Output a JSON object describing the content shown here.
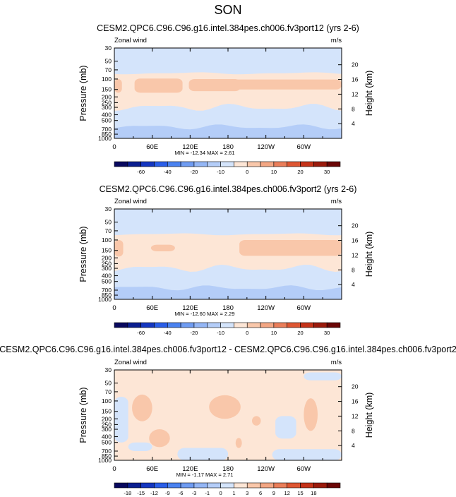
{
  "figure_title": "SON",
  "chart_data": [
    {
      "type": "heatmap",
      "title": "CESM2.QPC6.C96.C96.g16.intel.384pes.ch006.fv3port12 (yrs 2-6)",
      "left_label": "Zonal wind",
      "right_label": "m/s",
      "ylabel": "Pressure (mb)",
      "ylabel_right": "Height (km)",
      "x_ticks": [
        "0",
        "60E",
        "120E",
        "180",
        "120W",
        "60W"
      ],
      "x_tick_values": [
        0,
        60,
        120,
        180,
        240,
        300
      ],
      "xlim": [
        0,
        360
      ],
      "y_ticks": [
        "30",
        "50",
        "70",
        "100",
        "150",
        "200",
        "250",
        "300",
        "400",
        "500",
        "700",
        "850",
        "1000"
      ],
      "y_tick_values": [
        30,
        50,
        70,
        100,
        150,
        200,
        250,
        300,
        400,
        500,
        700,
        850,
        1000
      ],
      "ylim": [
        1000,
        30
      ],
      "y_scale": "log",
      "height_ticks": [
        "20",
        "16",
        "12",
        "8",
        "4"
      ],
      "stats": "MIN = -12.34  MAX =  2.61",
      "min": -12.34,
      "max": 2.61,
      "colorbar_levels": [
        -70,
        -60,
        -50,
        -40,
        -30,
        -20,
        -15,
        -10,
        -5,
        0,
        5,
        10,
        15,
        20,
        25,
        30,
        35
      ],
      "colorbar_labels": [
        "-60",
        "-40",
        "-20",
        "-10",
        "0",
        "10",
        "20",
        "30"
      ],
      "colorbar_colors": [
        "#08085e",
        "#0a1e8f",
        "#1436c0",
        "#2a5ee8",
        "#4a82f0",
        "#6f9cf2",
        "#94b6f5",
        "#b4cdf8",
        "#d4e4fb",
        "#fde6d6",
        "#f9c7aa",
        "#f3a683",
        "#ea7e5a",
        "#de5632",
        "#c43218",
        "#9a1a0c",
        "#6b0606"
      ],
      "fields": {
        "cold_band_upper": {
          "level": "-10 to -5",
          "pressure_span": [
            30,
            80
          ]
        },
        "warm_band": {
          "level": "0 to 5",
          "pressure_span": [
            80,
            300
          ]
        },
        "jet_cores": {
          "level": "5 to 10",
          "pressure_span": [
            100,
            180
          ]
        },
        "cold_band_lower": {
          "level": "-5 to 0",
          "pressure_span": [
            300,
            620
          ]
        },
        "surface": {
          "level": "-10 to -5",
          "pressure_span": [
            620,
            1000
          ]
        }
      }
    },
    {
      "type": "heatmap",
      "title": "CESM2.QPC6.C96.C96.g16.intel.384pes.ch006.fv3port2 (yrs 2-6)",
      "left_label": "Zonal wind",
      "right_label": "m/s",
      "ylabel": "Pressure (mb)",
      "ylabel_right": "Height (km)",
      "x_ticks": [
        "0",
        "60E",
        "120E",
        "180",
        "120W",
        "60W"
      ],
      "x_tick_values": [
        0,
        60,
        120,
        180,
        240,
        300
      ],
      "xlim": [
        0,
        360
      ],
      "y_ticks": [
        "30",
        "50",
        "70",
        "100",
        "150",
        "200",
        "250",
        "300",
        "400",
        "500",
        "700",
        "850",
        "1000"
      ],
      "y_tick_values": [
        30,
        50,
        70,
        100,
        150,
        200,
        250,
        300,
        400,
        500,
        700,
        850,
        1000
      ],
      "ylim": [
        1000,
        30
      ],
      "y_scale": "log",
      "height_ticks": [
        "20",
        "16",
        "12",
        "8",
        "4"
      ],
      "stats": "MIN = -12.60  MAX =  2.29",
      "min": -12.6,
      "max": 2.29,
      "colorbar_levels": [
        -70,
        -60,
        -50,
        -40,
        -30,
        -20,
        -15,
        -10,
        -5,
        0,
        5,
        10,
        15,
        20,
        25,
        30,
        35
      ],
      "colorbar_labels": [
        "-60",
        "-40",
        "-20",
        "-10",
        "0",
        "10",
        "20",
        "30"
      ],
      "colorbar_colors": [
        "#08085e",
        "#0a1e8f",
        "#1436c0",
        "#2a5ee8",
        "#4a82f0",
        "#6f9cf2",
        "#94b6f5",
        "#b4cdf8",
        "#d4e4fb",
        "#fde6d6",
        "#f9c7aa",
        "#f3a683",
        "#ea7e5a",
        "#de5632",
        "#c43218",
        "#9a1a0c",
        "#6b0606"
      ]
    },
    {
      "type": "heatmap",
      "title": "CESM2.QPC6.C96.C96.g16.intel.384pes.ch006.fv3port12 - CESM2.QPC6.C96.C96.g16.intel.384pes.ch006.fv3port2",
      "left_label": "Zonal wind",
      "right_label": "m/s",
      "ylabel": "Pressure (mb)",
      "ylabel_right": "Height (km)",
      "x_ticks": [
        "0",
        "60E",
        "120E",
        "180",
        "120W",
        "60W"
      ],
      "x_tick_values": [
        0,
        60,
        120,
        180,
        240,
        300
      ],
      "xlim": [
        0,
        360
      ],
      "y_ticks": [
        "30",
        "50",
        "70",
        "100",
        "150",
        "200",
        "250",
        "300",
        "400",
        "500",
        "700",
        "850",
        "1000"
      ],
      "y_tick_values": [
        30,
        50,
        70,
        100,
        150,
        200,
        250,
        300,
        400,
        500,
        700,
        850,
        1000
      ],
      "ylim": [
        1000,
        30
      ],
      "y_scale": "log",
      "height_ticks": [
        "20",
        "16",
        "12",
        "8",
        "4"
      ],
      "stats": "MIN = -1.17  MAX =  2.71",
      "min": -1.17,
      "max": 2.71,
      "colorbar_levels": [
        -21,
        -18,
        -15,
        -12,
        -9,
        -6,
        -3,
        -1,
        0,
        1,
        3,
        6,
        9,
        12,
        15,
        18,
        21
      ],
      "colorbar_labels": [
        "-18",
        "-15",
        "-12",
        "-9",
        "-6",
        "-3",
        "-1",
        "0",
        "1",
        "3",
        "6",
        "9",
        "12",
        "15",
        "18"
      ],
      "colorbar_colors": [
        "#08085e",
        "#0a1e8f",
        "#1436c0",
        "#2a5ee8",
        "#4a82f0",
        "#6f9cf2",
        "#94b6f5",
        "#b4cdf8",
        "#d4e4fb",
        "#fde6d6",
        "#f9c7aa",
        "#f3a683",
        "#ea7e5a",
        "#de5632",
        "#c43218",
        "#9a1a0c",
        "#6b0606"
      ]
    }
  ]
}
